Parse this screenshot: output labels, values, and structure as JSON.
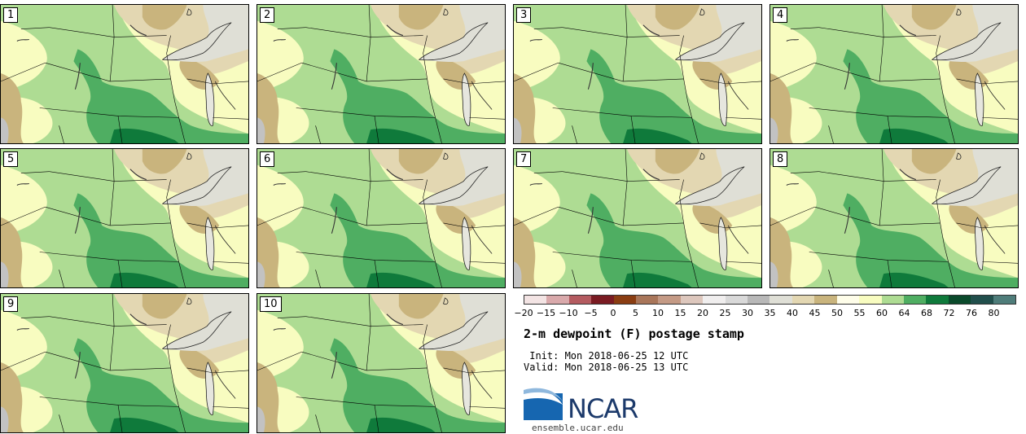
{
  "panels": [
    {
      "label": "1"
    },
    {
      "label": "2"
    },
    {
      "label": "3"
    },
    {
      "label": "4"
    },
    {
      "label": "5"
    },
    {
      "label": "6"
    },
    {
      "label": "7"
    },
    {
      "label": "8"
    },
    {
      "label": "9"
    },
    {
      "label": "10"
    }
  ],
  "colorbar": {
    "ticks": [
      "−20",
      "−15",
      "−10",
      "−5",
      "0",
      "5",
      "10",
      "15",
      "20",
      "25",
      "30",
      "35",
      "40",
      "45",
      "50",
      "55",
      "60",
      "64",
      "68",
      "72",
      "76",
      "80"
    ],
    "colors": [
      "#f3e4e4",
      "#d9a9ab",
      "#b45b60",
      "#7a1b22",
      "#8a3d12",
      "#a9765a",
      "#c49a85",
      "#ddc7bd",
      "#f0eeee",
      "#d9d9d9",
      "#b8b8b8",
      "#dfdfd6",
      "#e3d7b2",
      "#c9b47d",
      "#fefde9",
      "#f8fcc0",
      "#aedc93",
      "#4fae62",
      "#0f7a3b",
      "#0a4a2b",
      "#214f4c",
      "#4f7d7a"
    ]
  },
  "title": "2-m dewpoint (F) postage stamp",
  "init": " Init: Mon 2018-06-25 12 UTC",
  "valid": "Valid: Mon 2018-06-25 13 UTC",
  "logo": {
    "text": "NCAR",
    "site": "ensemble.ucar.edu"
  },
  "map_colors": {
    "pale_yellow": "#f8fcc0",
    "light_green": "#aedc93",
    "medium_green": "#4fae62",
    "dark_green": "#0f7a3b",
    "tan": "#c9b47d",
    "light_tan": "#e3d7b2",
    "gray": "#dfdfd6"
  }
}
